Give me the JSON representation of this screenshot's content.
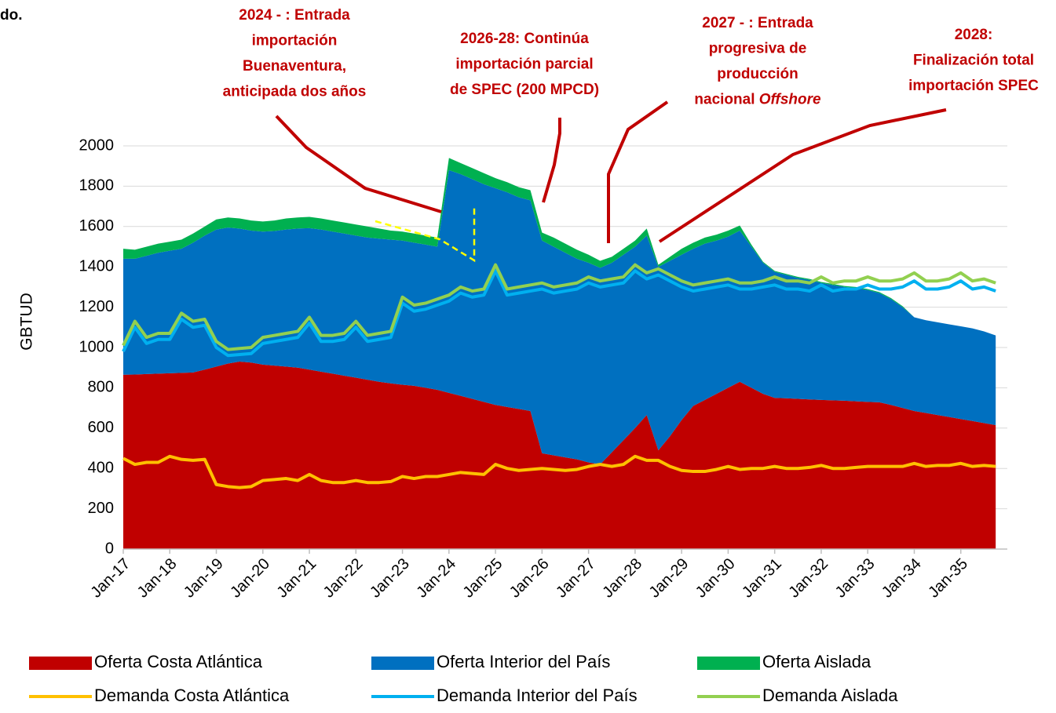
{
  "chart_data": {
    "type": "area",
    "fragment": "do.",
    "y_label": "GBTUD",
    "ylim": [
      0,
      2000
    ],
    "yticks": [
      0,
      200,
      400,
      600,
      800,
      1000,
      1200,
      1400,
      1600,
      1800,
      2000
    ],
    "grid": true,
    "categories": [
      "Jan-17",
      null,
      null,
      null,
      "Jan-18",
      null,
      null,
      null,
      "Jan-19",
      null,
      null,
      null,
      "Jan-20",
      null,
      null,
      null,
      "Jan-21",
      null,
      null,
      null,
      "Jan-22",
      null,
      null,
      null,
      "Jan-23",
      null,
      null,
      null,
      "Jan-24",
      null,
      null,
      null,
      "Jan-25",
      null,
      null,
      null,
      "Jan-26",
      null,
      null,
      null,
      "Jan-27",
      null,
      null,
      null,
      "Jan-28",
      null,
      null,
      null,
      "Jan-29",
      null,
      null,
      null,
      "Jan-30",
      null,
      null,
      null,
      "Jan-31",
      null,
      null,
      null,
      "Jan-32",
      null,
      null,
      null,
      "Jan-33",
      null,
      null,
      null,
      "Jan-34",
      null,
      null,
      null,
      "Jan-35",
      null,
      null,
      null
    ],
    "series": [
      {
        "name": "Oferta Costa Atlántica",
        "type": "area",
        "color": "#c00000",
        "values": [
          865,
          866,
          868,
          870,
          872,
          874,
          876,
          890,
          905,
          920,
          930,
          925,
          915,
          910,
          905,
          900,
          890,
          880,
          870,
          860,
          850,
          840,
          830,
          822,
          815,
          810,
          800,
          790,
          775,
          760,
          745,
          730,
          715,
          705,
          695,
          685,
          475,
          465,
          455,
          445,
          430,
          420,
          480,
          540,
          600,
          665,
          490,
          560,
          640,
          710,
          740,
          770,
          800,
          830,
          800,
          770,
          750,
          748,
          745,
          742,
          740,
          738,
          736,
          733,
          730,
          728,
          715,
          700,
          685,
          675,
          665,
          655,
          645,
          635,
          625,
          615
        ]
      },
      {
        "name": "Oferta Interior del País",
        "type": "area",
        "color": "#0070c0",
        "values": [
          575,
          574,
          587,
          600,
          608,
          616,
          644,
          665,
          680,
          675,
          660,
          655,
          660,
          668,
          680,
          690,
          702,
          705,
          705,
          705,
          705,
          705,
          710,
          713,
          715,
          710,
          710,
          710,
          1105,
          1100,
          1090,
          1080,
          1075,
          1065,
          1050,
          1045,
          1055,
          1035,
          1015,
          995,
          990,
          975,
          940,
          920,
          900,
          890,
          910,
          870,
          820,
          780,
          775,
          760,
          750,
          750,
          700,
          650,
          625,
          612,
          600,
          593,
          580,
          572,
          564,
          562,
          555,
          542,
          525,
          500,
          465,
          460,
          460,
          460,
          460,
          460,
          455,
          445
        ]
      },
      {
        "name": "Oferta Aislada",
        "type": "area",
        "color": "#00b050",
        "values": [
          50,
          45,
          45,
          45,
          45,
          45,
          45,
          45,
          50,
          50,
          50,
          50,
          50,
          52,
          55,
          55,
          56,
          55,
          55,
          55,
          55,
          55,
          50,
          45,
          45,
          45,
          45,
          45,
          60,
          55,
          55,
          55,
          50,
          50,
          50,
          50,
          40,
          45,
          45,
          45,
          40,
          35,
          30,
          30,
          30,
          35,
          10,
          20,
          30,
          30,
          30,
          30,
          30,
          25,
          10,
          5,
          5,
          5,
          5,
          5,
          5,
          5,
          5,
          5,
          5,
          5,
          5,
          5,
          0,
          0,
          0,
          0,
          0,
          0,
          0,
          0
        ]
      },
      {
        "name": "Demanda Costa Atlántica",
        "type": "line",
        "color": "#ffc000",
        "values": [
          450,
          420,
          430,
          430,
          460,
          445,
          440,
          445,
          320,
          310,
          305,
          310,
          340,
          345,
          350,
          340,
          370,
          340,
          330,
          330,
          340,
          330,
          330,
          335,
          360,
          350,
          360,
          360,
          370,
          380,
          375,
          370,
          420,
          400,
          390,
          395,
          400,
          395,
          390,
          395,
          410,
          420,
          410,
          420,
          460,
          440,
          440,
          410,
          390,
          385,
          385,
          395,
          410,
          395,
          400,
          400,
          410,
          400,
          400,
          405,
          415,
          400,
          400,
          405,
          410,
          410,
          410,
          410,
          425,
          410,
          415,
          415,
          425,
          410,
          415,
          410
        ]
      },
      {
        "name": "Demanda Interior del País",
        "type": "line",
        "color": "#00b0f0",
        "values": [
          980,
          1100,
          1020,
          1040,
          1040,
          1140,
          1100,
          1110,
          1000,
          960,
          965,
          970,
          1020,
          1030,
          1040,
          1050,
          1120,
          1030,
          1030,
          1040,
          1100,
          1030,
          1040,
          1050,
          1220,
          1180,
          1190,
          1210,
          1230,
          1270,
          1250,
          1260,
          1380,
          1260,
          1270,
          1280,
          1290,
          1270,
          1280,
          1290,
          1320,
          1300,
          1310,
          1320,
          1380,
          1340,
          1360,
          1330,
          1300,
          1280,
          1290,
          1300,
          1310,
          1290,
          1290,
          1300,
          1310,
          1290,
          1290,
          1280,
          1310,
          1280,
          1290,
          1290,
          1310,
          1290,
          1290,
          1300,
          1330,
          1290,
          1290,
          1300,
          1330,
          1290,
          1300,
          1280
        ]
      },
      {
        "name": "Demanda Aislada",
        "type": "line",
        "color": "#92d050",
        "values": [
          1010,
          1130,
          1050,
          1070,
          1070,
          1170,
          1130,
          1140,
          1030,
          990,
          995,
          1000,
          1050,
          1060,
          1070,
          1080,
          1150,
          1060,
          1060,
          1070,
          1130,
          1060,
          1070,
          1080,
          1250,
          1210,
          1220,
          1240,
          1260,
          1300,
          1280,
          1290,
          1410,
          1290,
          1300,
          1310,
          1320,
          1300,
          1310,
          1320,
          1350,
          1330,
          1340,
          1350,
          1410,
          1370,
          1390,
          1360,
          1330,
          1310,
          1320,
          1330,
          1340,
          1320,
          1320,
          1330,
          1350,
          1330,
          1330,
          1320,
          1350,
          1320,
          1330,
          1330,
          1350,
          1330,
          1330,
          1340,
          1370,
          1330,
          1330,
          1340,
          1370,
          1330,
          1340,
          1320
        ]
      }
    ],
    "annotations": [
      {
        "lines": [
          "2024 - : Entrada",
          "importación",
          "Buenaventura,",
          "anticipada dos años"
        ]
      },
      {
        "lines": [
          "2026-28: Continúa",
          "importación parcial",
          "de SPEC (200 MPCD)"
        ]
      },
      {
        "lines": [
          "2027 - : Entrada",
          "progresiva de",
          "producción",
          "nacional"
        ],
        "italic": "Offshore"
      },
      {
        "lines": [
          "2028:",
          "Finalización total",
          "importación SPEC"
        ]
      }
    ]
  }
}
